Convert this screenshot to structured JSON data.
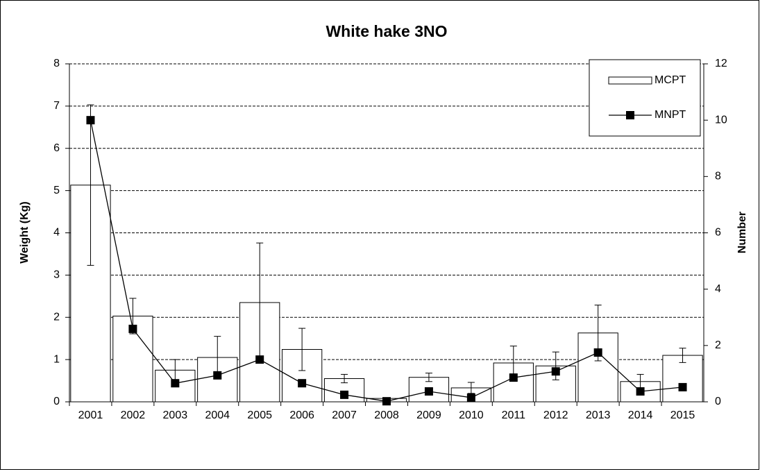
{
  "chart_data": {
    "type": "bar-line",
    "title": "White hake 3NO",
    "y_label": "Weight (Kg)",
    "y2_label": "Number",
    "categories": [
      "2001",
      "2002",
      "2003",
      "2004",
      "2005",
      "2006",
      "2007",
      "2008",
      "2009",
      "2010",
      "2011",
      "2012",
      "2013",
      "2014",
      "2015"
    ],
    "series": [
      {
        "name": "MCPT",
        "type": "bar",
        "axis": "y",
        "color": "#ffffff",
        "values": [
          5.13,
          2.03,
          0.75,
          1.05,
          2.35,
          1.24,
          0.55,
          0.08,
          0.58,
          0.33,
          0.92,
          0.85,
          1.63,
          0.48,
          1.1
        ],
        "errors": [
          1.9,
          0.42,
          0.25,
          0.5,
          1.41,
          0.5,
          0.1,
          0.0,
          0.1,
          0.13,
          0.4,
          0.33,
          0.66,
          0.17,
          0.17
        ]
      },
      {
        "name": "MNPT",
        "type": "line",
        "axis": "y2",
        "color": "#000000",
        "values": [
          10.0,
          2.59,
          0.66,
          0.94,
          1.5,
          0.66,
          0.25,
          0.02,
          0.37,
          0.15,
          0.86,
          1.08,
          1.75,
          0.37,
          0.52
        ]
      }
    ],
    "ylim": [
      0,
      8
    ],
    "yticks": [
      0,
      1,
      2,
      3,
      4,
      5,
      6,
      7,
      8
    ],
    "y2lim": [
      0,
      12
    ],
    "y2ticks": [
      0,
      2,
      4,
      6,
      8,
      10,
      12
    ],
    "grid": true,
    "legend": "upper right"
  }
}
